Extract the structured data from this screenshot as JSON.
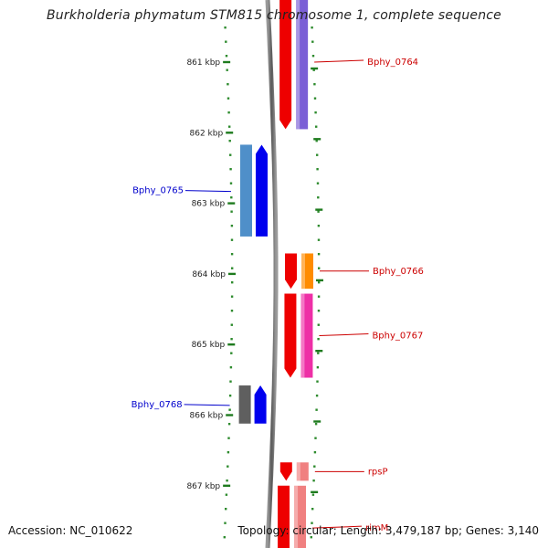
{
  "title": "Burkholderia phymatum STM815 chromosome 1, complete sequence",
  "accession_text": "Accession: NC_010622",
  "topology_text": "Topology: circular; Length: 3,479,187 bp; Genes: 3,140",
  "scale": {
    "unit": "kbp",
    "ticks": [
      {
        "kbp": 861,
        "label": "861 kbp"
      },
      {
        "kbp": 862,
        "label": "862 kbp"
      },
      {
        "kbp": 863,
        "label": "863 kbp"
      },
      {
        "kbp": 864,
        "label": "864 kbp"
      },
      {
        "kbp": 865,
        "label": "865 kbp"
      },
      {
        "kbp": 866,
        "label": "866 kbp"
      },
      {
        "kbp": 867,
        "label": "867 kbp"
      }
    ]
  },
  "genes": [
    {
      "name": "Bphy_0764",
      "strand": "+",
      "start_kbp": 860.05,
      "end_kbp": 861.95,
      "color": "#7a5fd6",
      "label_color": "#cc0000",
      "show_label": true
    },
    {
      "name": "",
      "strand": "+",
      "start_kbp": 859.5,
      "end_kbp": 860.05,
      "color": "#00e0e8",
      "label_color": "#cc0000",
      "show_label": false
    },
    {
      "name": "Bphy_0765",
      "strand": "-",
      "start_kbp": 862.17,
      "end_kbp": 863.47,
      "color": "#4f8fc9",
      "label_color": "#0000cc",
      "show_label": true
    },
    {
      "name": "Bphy_0766",
      "strand": "+",
      "start_kbp": 863.71,
      "end_kbp": 864.21,
      "color": "#ff8c00",
      "label_color": "#cc0000",
      "show_label": true
    },
    {
      "name": "Bphy_0767",
      "strand": "+",
      "start_kbp": 864.28,
      "end_kbp": 865.47,
      "color": "#ee2fa6",
      "label_color": "#cc0000",
      "show_label": true
    },
    {
      "name": "Bphy_0768",
      "strand": "-",
      "start_kbp": 865.58,
      "end_kbp": 866.12,
      "color": "#5f5f5f",
      "label_color": "#0000cc",
      "show_label": true
    },
    {
      "name": "rpsP",
      "strand": "+",
      "start_kbp": 866.67,
      "end_kbp": 866.93,
      "color": "#f08080",
      "label_color": "#cc0000",
      "show_label": true
    },
    {
      "name": "rimM",
      "strand": "+",
      "start_kbp": 867.0,
      "end_kbp": 868.2,
      "color": "#f08080",
      "label_color": "#cc0000",
      "show_label": true
    }
  ]
}
